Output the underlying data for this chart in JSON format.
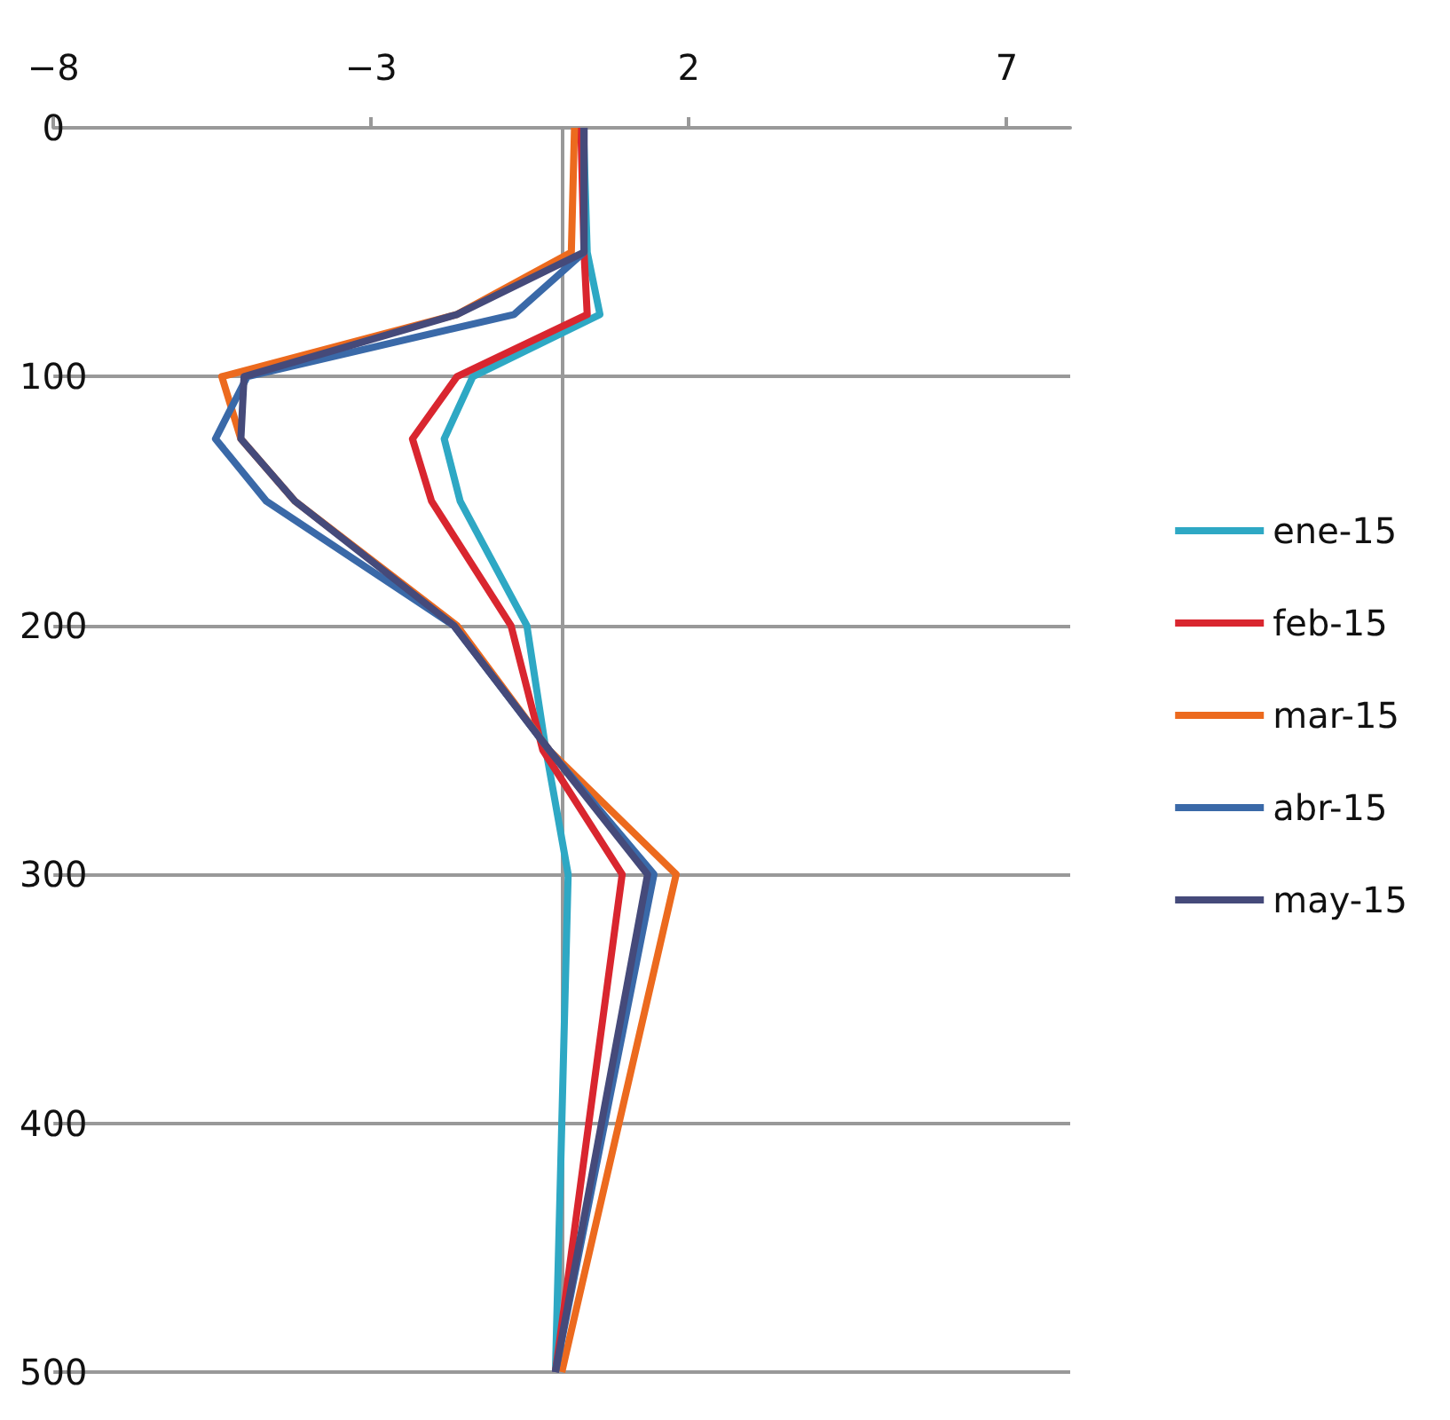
{
  "chart_data": {
    "type": "line",
    "series": [
      {
        "name": "ene-15",
        "color": "#2ea8c4",
        "x": [
          0.34,
          0.4,
          0.6,
          -1.4,
          -1.85,
          -1.6,
          -0.55,
          -0.25,
          0.1,
          -0.1
        ],
        "values": [
          0,
          50,
          75,
          100,
          125,
          150,
          200,
          250,
          300,
          500
        ]
      },
      {
        "name": "feb-15",
        "color": "#d9262f",
        "x": [
          0.3,
          0.35,
          0.4,
          -1.65,
          -2.35,
          -2.05,
          -0.8,
          -0.3,
          0.95,
          -0.1
        ],
        "values": [
          0,
          50,
          75,
          100,
          125,
          150,
          200,
          250,
          300,
          500
        ]
      },
      {
        "name": "mar-15",
        "color": "#ec6a1e",
        "x": [
          0.2,
          0.15,
          -1.65,
          -5.35,
          -5.05,
          -4.2,
          -1.65,
          -0.2,
          1.8,
          0
        ],
        "values": [
          0,
          50,
          75,
          100,
          125,
          150,
          200,
          250,
          300,
          500
        ]
      },
      {
        "name": "abr-15",
        "color": "#3a69a8",
        "x": [
          0.35,
          0.35,
          -0.75,
          -4.95,
          -5.45,
          -4.65,
          -1.7,
          -0.2,
          1.45,
          -0.1
        ],
        "values": [
          0,
          50,
          75,
          100,
          125,
          150,
          200,
          250,
          300,
          500
        ]
      },
      {
        "name": "may-15",
        "color": "#454a7a",
        "x": [
          0.35,
          0.35,
          -1.65,
          -5.0,
          -5.05,
          -4.2,
          -1.7,
          -0.2,
          1.35,
          -0.1
        ],
        "values": [
          0,
          50,
          75,
          100,
          125,
          150,
          200,
          250,
          300,
          500
        ]
      }
    ],
    "xlim": [
      -8,
      8
    ],
    "xticks": [
      -8,
      -3,
      2,
      7
    ],
    "ylim": [
      500,
      0
    ],
    "yticks": [
      0,
      100,
      200,
      300,
      400,
      500
    ],
    "grid": "y",
    "legend": "right",
    "marker": "none",
    "line_style": "solid"
  }
}
